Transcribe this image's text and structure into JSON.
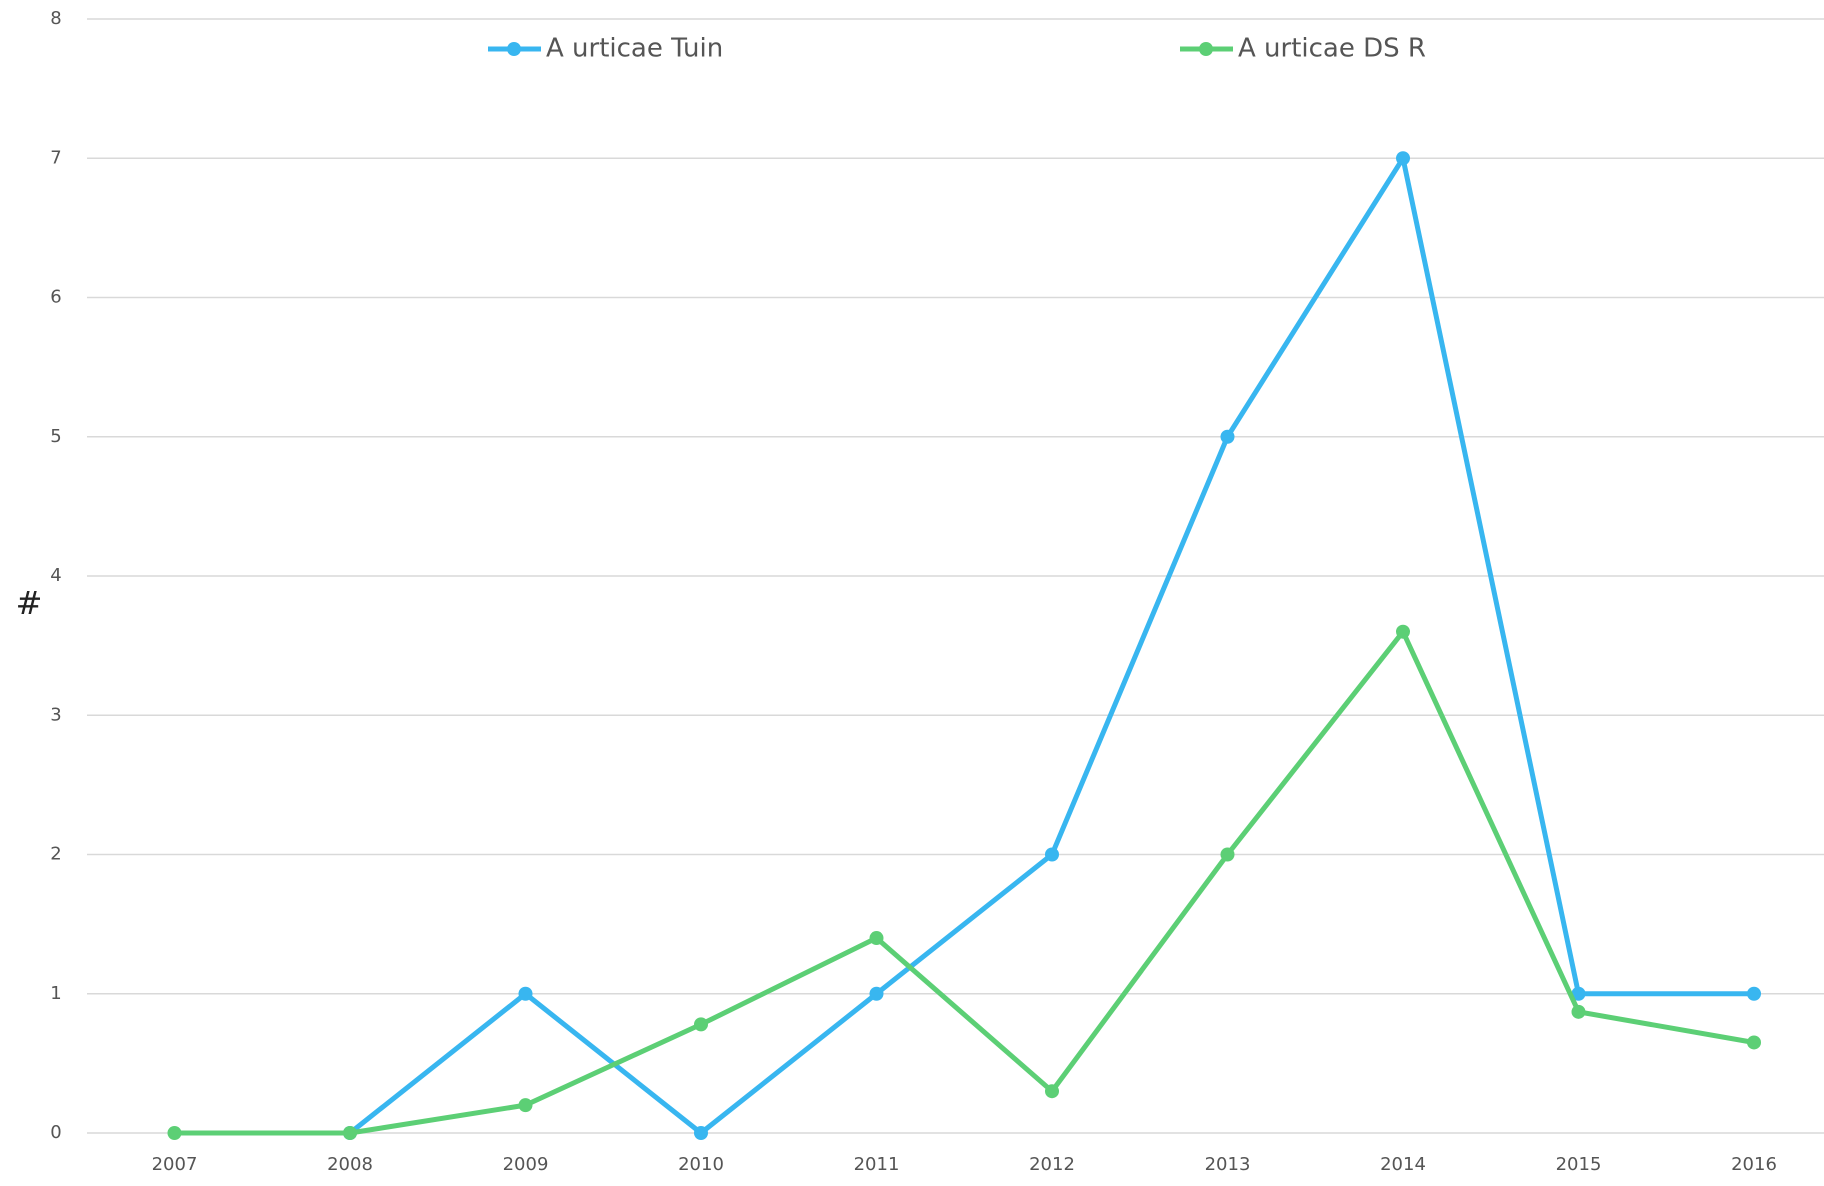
{
  "chart_data": {
    "type": "line",
    "y_label": "#",
    "categories": [
      "2007",
      "2008",
      "2009",
      "2010",
      "2011",
      "2012",
      "2013",
      "2014",
      "2015",
      "2016"
    ],
    "series": [
      {
        "name": "A urticae Tuin",
        "color": "#38b6f0",
        "values": [
          null,
          0,
          1,
          0,
          1,
          2,
          5,
          7,
          1,
          1
        ]
      },
      {
        "name": "A urticae DS R",
        "color": "#5ccf75",
        "values": [
          0,
          0,
          0.2,
          0.78,
          1.4,
          0.3,
          2.0,
          3.6,
          0.87,
          0.65
        ]
      }
    ],
    "ylim": [
      0,
      8
    ],
    "yticks": [
      0,
      1,
      2,
      3,
      4,
      5,
      6,
      7,
      8
    ],
    "grid": true,
    "legend": "top"
  }
}
